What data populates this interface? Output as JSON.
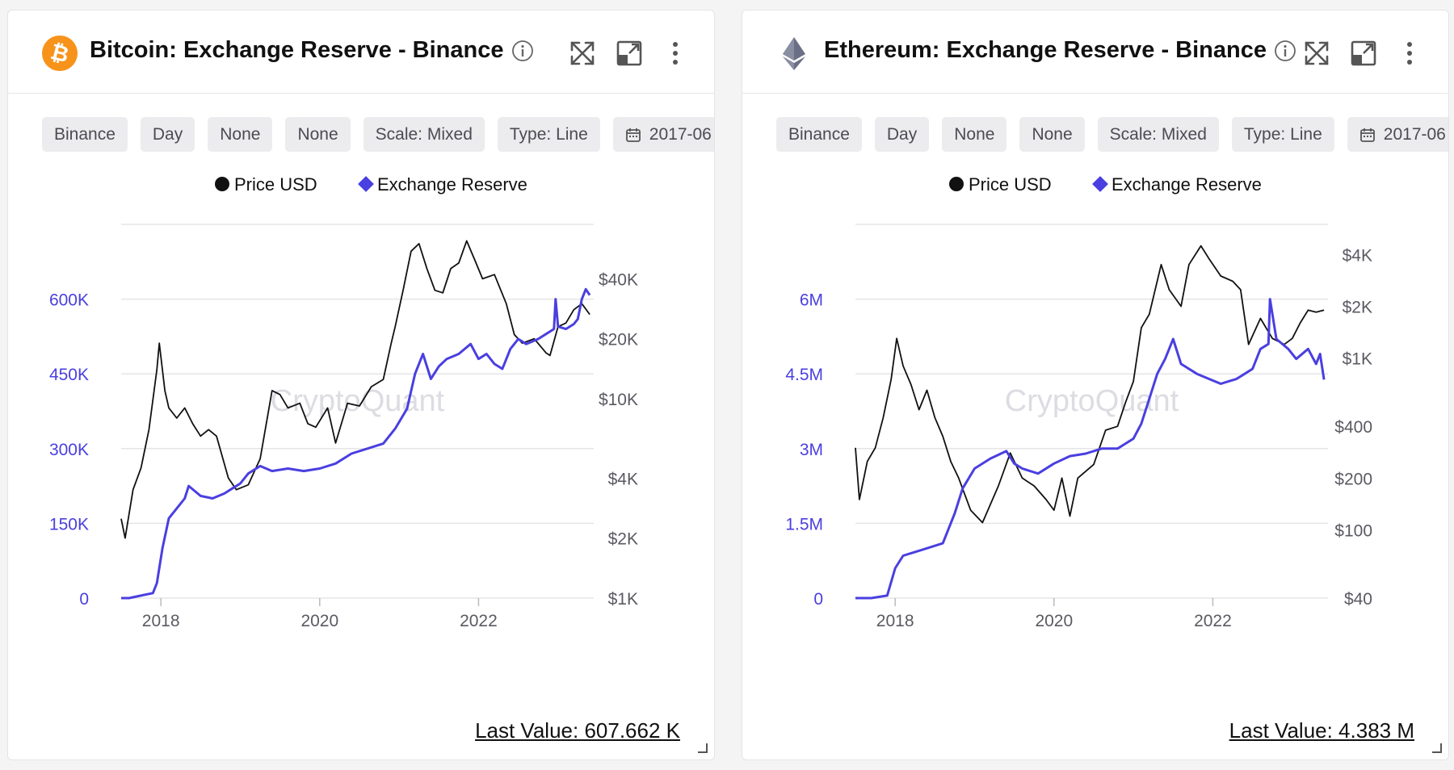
{
  "colors": {
    "accent": "#4a3fe0",
    "price_line": "#111111",
    "chip_bg": "#ececee",
    "grid": "#e5e5e8",
    "btc_orange": "#f7931a",
    "eth_gray": "#6b6f85"
  },
  "cards": [
    {
      "title": "Bitcoin: Exchange Reserve - Binance",
      "coin_icon": "bitcoin-icon",
      "filters": [
        "Binance",
        "Day",
        "None",
        "None",
        "Scale: Mixed",
        "Type: Line"
      ],
      "date_filter": "2017-06",
      "last_value": "Last Value: 607.662 K",
      "watermark": "CryptoQuant"
    },
    {
      "title": "Ethereum: Exchange Reserve - Binance",
      "coin_icon": "ethereum-icon",
      "filters": [
        "Binance",
        "Day",
        "None",
        "None",
        "Scale: Mixed",
        "Type: Line"
      ],
      "date_filter": "2017-06",
      "last_value": "Last Value: 4.383 M",
      "watermark": "CryptoQuant"
    }
  ],
  "chart_data": [
    {
      "type": "line",
      "title": "Bitcoin: Exchange Reserve - Binance",
      "legend": [
        "Price USD",
        "Exchange Reserve"
      ],
      "legend_position": "top-center",
      "grid": true,
      "x_ticks": [
        "2018",
        "2020",
        "2022"
      ],
      "xlim": [
        2017.5,
        2023.45
      ],
      "y_left": {
        "ticks": [
          "0",
          "150K",
          "300K",
          "450K",
          "600K"
        ],
        "range": [
          0,
          750000
        ]
      },
      "y_right": {
        "scale": "log",
        "ticks": [
          "$1K",
          "$2K",
          "$4K",
          "$10K",
          "$20K",
          "$40K"
        ],
        "tick_values": [
          1000,
          2000,
          4000,
          10000,
          20000,
          40000
        ],
        "range": [
          1000,
          75000
        ]
      },
      "series": [
        {
          "name": "Exchange Reserve",
          "axis": "left",
          "x": [
            2017.5,
            2017.6,
            2017.75,
            2017.9,
            2017.95,
            2018.02,
            2018.1,
            2018.2,
            2018.3,
            2018.35,
            2018.5,
            2018.65,
            2018.8,
            2018.9,
            2019.0,
            2019.1,
            2019.25,
            2019.4,
            2019.6,
            2019.8,
            2020.0,
            2020.2,
            2020.4,
            2020.6,
            2020.8,
            2020.95,
            2021.1,
            2021.2,
            2021.3,
            2021.4,
            2021.5,
            2021.6,
            2021.75,
            2021.9,
            2022.0,
            2022.1,
            2022.2,
            2022.3,
            2022.4,
            2022.5,
            2022.6,
            2022.75,
            2022.85,
            2022.95,
            2022.97,
            2023.0,
            2023.1,
            2023.2,
            2023.25,
            2023.3,
            2023.35,
            2023.4
          ],
          "y": [
            0,
            0,
            5000,
            10000,
            30000,
            100000,
            160000,
            180000,
            200000,
            225000,
            205000,
            200000,
            210000,
            220000,
            230000,
            250000,
            265000,
            255000,
            260000,
            255000,
            260000,
            270000,
            290000,
            300000,
            310000,
            340000,
            380000,
            450000,
            490000,
            440000,
            465000,
            480000,
            490000,
            510000,
            480000,
            490000,
            470000,
            460000,
            500000,
            520000,
            510000,
            520000,
            530000,
            540000,
            600000,
            545000,
            540000,
            550000,
            560000,
            600000,
            620000,
            608000
          ]
        },
        {
          "name": "Price USD",
          "axis": "right",
          "x": [
            2017.5,
            2017.55,
            2017.65,
            2017.75,
            2017.85,
            2017.95,
            2017.98,
            2018.05,
            2018.1,
            2018.2,
            2018.3,
            2018.4,
            2018.5,
            2018.6,
            2018.7,
            2018.85,
            2018.95,
            2019.1,
            2019.25,
            2019.4,
            2019.5,
            2019.6,
            2019.75,
            2019.85,
            2019.95,
            2020.1,
            2020.2,
            2020.35,
            2020.5,
            2020.65,
            2020.8,
            2020.9,
            2020.95,
            2021.05,
            2021.15,
            2021.25,
            2021.35,
            2021.45,
            2021.55,
            2021.65,
            2021.75,
            2021.85,
            2021.95,
            2022.05,
            2022.2,
            2022.35,
            2022.45,
            2022.55,
            2022.7,
            2022.85,
            2022.9,
            2023.0,
            2023.1,
            2023.2,
            2023.3,
            2023.4
          ],
          "y": [
            2500,
            2000,
            3500,
            4500,
            7000,
            14000,
            19000,
            11000,
            9000,
            8000,
            9000,
            7500,
            6500,
            7000,
            6500,
            4000,
            3500,
            3700,
            5000,
            11000,
            10500,
            9000,
            9500,
            7500,
            7200,
            9000,
            6000,
            9500,
            9200,
            11500,
            12500,
            19000,
            23000,
            35000,
            55000,
            60000,
            45000,
            35000,
            34000,
            45000,
            48000,
            62000,
            50000,
            40000,
            42000,
            30000,
            21000,
            19000,
            20000,
            17000,
            16500,
            23000,
            24000,
            28000,
            30000,
            26500
          ]
        }
      ]
    },
    {
      "type": "line",
      "title": "Ethereum: Exchange Reserve - Binance",
      "legend": [
        "Price USD",
        "Exchange Reserve"
      ],
      "legend_position": "top-center",
      "grid": true,
      "x_ticks": [
        "2018",
        "2020",
        "2022"
      ],
      "xlim": [
        2017.5,
        2023.45
      ],
      "y_left": {
        "ticks": [
          "0",
          "1.5M",
          "3M",
          "4.5M",
          "6M"
        ],
        "range": [
          0,
          7500000
        ]
      },
      "y_right": {
        "scale": "log",
        "ticks": [
          "$40",
          "$100",
          "$200",
          "$400",
          "$1K",
          "$2K",
          "$4K"
        ],
        "tick_values": [
          40,
          100,
          200,
          400,
          1000,
          2000,
          4000
        ],
        "range": [
          40,
          6000
        ]
      },
      "series": [
        {
          "name": "Exchange Reserve",
          "axis": "left",
          "x": [
            2017.5,
            2017.7,
            2017.9,
            2018.0,
            2018.1,
            2018.2,
            2018.4,
            2018.6,
            2018.75,
            2018.85,
            2019.0,
            2019.2,
            2019.4,
            2019.5,
            2019.6,
            2019.8,
            2020.0,
            2020.2,
            2020.4,
            2020.6,
            2020.8,
            2020.9,
            2021.0,
            2021.1,
            2021.2,
            2021.3,
            2021.4,
            2021.5,
            2021.6,
            2021.8,
            2021.95,
            2022.1,
            2022.3,
            2022.4,
            2022.5,
            2022.6,
            2022.7,
            2022.72,
            2022.8,
            2022.95,
            2023.05,
            2023.2,
            2023.3,
            2023.35,
            2023.4
          ],
          "y": [
            0,
            0,
            50000,
            600000,
            850000,
            900000,
            1000000,
            1100000,
            1700000,
            2200000,
            2600000,
            2800000,
            2950000,
            2700000,
            2600000,
            2500000,
            2700000,
            2850000,
            2900000,
            3000000,
            3000000,
            3100000,
            3200000,
            3500000,
            4000000,
            4500000,
            4800000,
            5200000,
            4700000,
            4500000,
            4400000,
            4300000,
            4400000,
            4500000,
            4600000,
            5000000,
            5100000,
            6000000,
            5200000,
            5000000,
            4800000,
            5000000,
            4700000,
            4900000,
            4383000
          ]
        },
        {
          "name": "Price USD",
          "axis": "right",
          "x": [
            2017.5,
            2017.55,
            2017.65,
            2017.75,
            2017.85,
            2017.95,
            2018.02,
            2018.1,
            2018.2,
            2018.3,
            2018.4,
            2018.5,
            2018.6,
            2018.7,
            2018.8,
            2018.95,
            2019.1,
            2019.3,
            2019.45,
            2019.6,
            2019.75,
            2019.9,
            2020.0,
            2020.1,
            2020.2,
            2020.3,
            2020.5,
            2020.65,
            2020.8,
            2020.9,
            2021.0,
            2021.1,
            2021.2,
            2021.35,
            2021.45,
            2021.6,
            2021.7,
            2021.85,
            2021.95,
            2022.1,
            2022.25,
            2022.35,
            2022.45,
            2022.6,
            2022.75,
            2022.9,
            2023.0,
            2023.1,
            2023.2,
            2023.3,
            2023.4
          ],
          "y": [
            300,
            150,
            250,
            300,
            450,
            750,
            1300,
            900,
            700,
            500,
            650,
            450,
            350,
            250,
            200,
            130,
            110,
            180,
            280,
            200,
            180,
            150,
            130,
            200,
            120,
            200,
            240,
            380,
            400,
            550,
            730,
            1500,
            1800,
            3500,
            2500,
            2000,
            3500,
            4500,
            3800,
            3000,
            2800,
            2500,
            1200,
            1700,
            1300,
            1200,
            1300,
            1600,
            1900,
            1850,
            1900
          ]
        }
      ]
    }
  ]
}
